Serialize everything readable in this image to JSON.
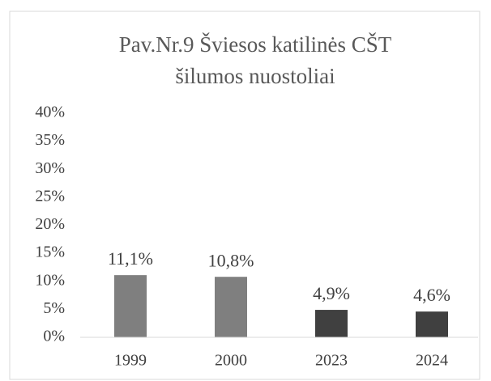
{
  "chart_data": {
    "type": "bar",
    "title": [
      "Pav.Nr.9 Šviesos katilinės CŠT",
      "šilumos nuostoliai"
    ],
    "categories": [
      "1999",
      "2000",
      "2023",
      "2024"
    ],
    "values": [
      11.1,
      10.8,
      4.9,
      4.6
    ],
    "value_labels": [
      "11,1%",
      "10,8%",
      "4,9%",
      "4,6%"
    ],
    "colors": [
      "#7f7f7f",
      "#7f7f7f",
      "#404040",
      "#404040"
    ],
    "ylim": [
      0,
      40
    ],
    "yticks": [
      {
        "value": 0,
        "label": "0%"
      },
      {
        "value": 5,
        "label": "5%"
      },
      {
        "value": 10,
        "label": "10%"
      },
      {
        "value": 15,
        "label": "15%"
      },
      {
        "value": 20,
        "label": "20%"
      },
      {
        "value": 25,
        "label": "25%"
      },
      {
        "value": 30,
        "label": "30%"
      },
      {
        "value": 35,
        "label": "35%"
      },
      {
        "value": 40,
        "label": "40%"
      }
    ],
    "grid": false
  }
}
